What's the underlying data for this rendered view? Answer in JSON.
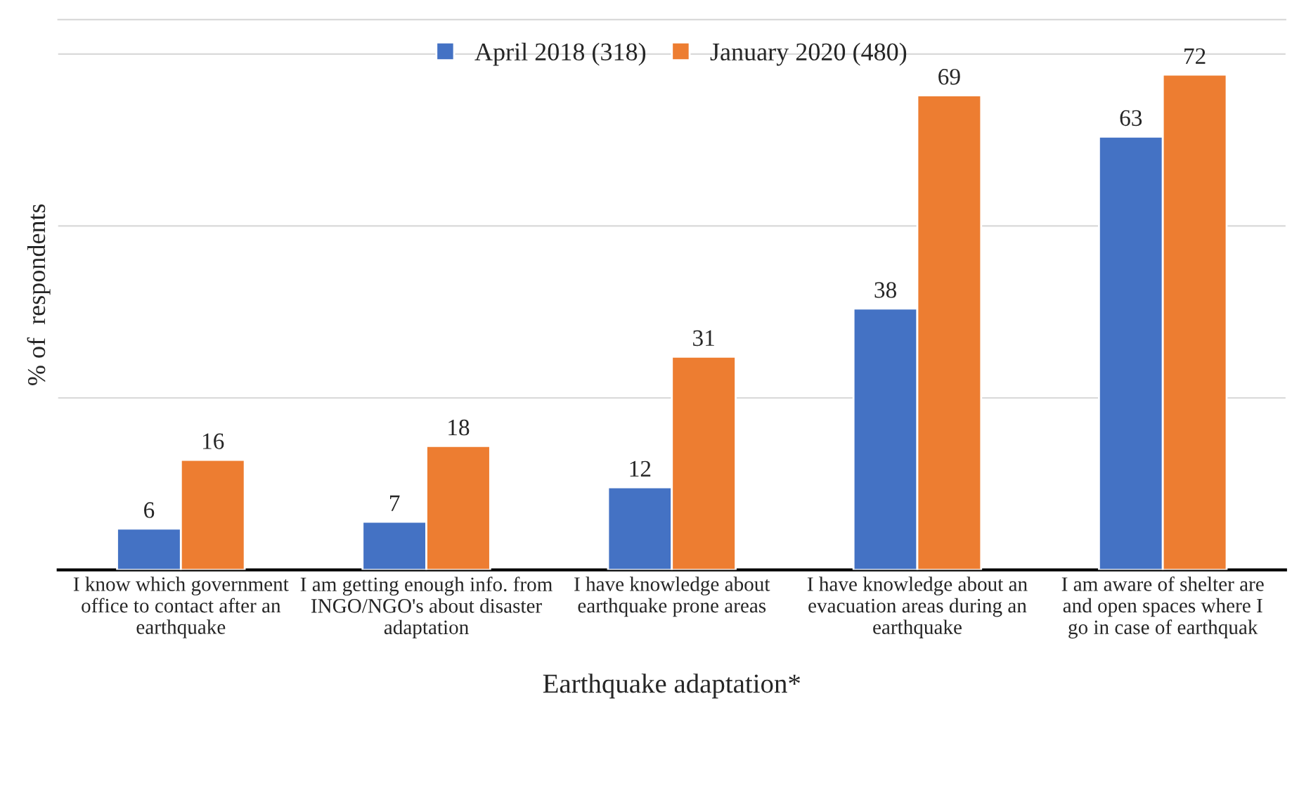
{
  "chart_data": {
    "type": "bar",
    "categories": [
      "I know which government\noffice to contact after an\nearthquake",
      "I am getting enough info. from\nINGO/NGO's about disaster\nadaptation",
      "I have knowledge about\nearthquake prone areas",
      "I have knowledge about an\nevacuation areas during an\nearthquake",
      "I am aware of shelter are\nand open spaces where I\ngo in case of earthquak"
    ],
    "series": [
      {
        "name": "April 2018 (318)",
        "color": "#4472c4",
        "values": [
          6,
          7,
          12,
          38,
          63
        ]
      },
      {
        "name": "January 2020 (480)",
        "color": "#ed7d31",
        "values": [
          16,
          18,
          31,
          69,
          72
        ]
      }
    ],
    "xlabel": "Earthquake adaptation*",
    "ylabel": "% of  respondents",
    "ylim": [
      0,
      80
    ],
    "yticks": [
      {
        "value": 0,
        "label": null
      },
      {
        "value": 25,
        "label": null
      },
      {
        "value": 50,
        "label": null
      },
      {
        "value": 75,
        "label": null
      }
    ],
    "tick_labels": "x",
    "grid": "y",
    "legend": "top",
    "data_labels": true
  }
}
